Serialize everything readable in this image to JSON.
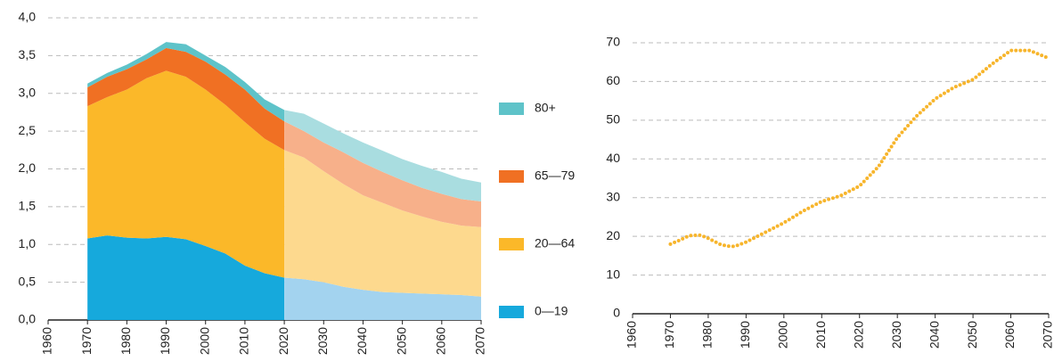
{
  "chart_data": [
    {
      "type": "stacked_area",
      "x": [
        1970,
        1975,
        1980,
        1985,
        1990,
        1995,
        2000,
        2005,
        2010,
        2015,
        2020,
        2025,
        2030,
        2035,
        2040,
        2045,
        2050,
        2055,
        2060,
        2065,
        2070
      ],
      "projection_from": 2020,
      "series": [
        {
          "name": "0—19",
          "color": "#16a9dc",
          "projection_color": "#a3d3ef",
          "values": [
            1.08,
            1.12,
            1.09,
            1.08,
            1.1,
            1.07,
            0.98,
            0.88,
            0.72,
            0.62,
            0.56,
            0.54,
            0.5,
            0.44,
            0.4,
            0.37,
            0.36,
            0.35,
            0.34,
            0.33,
            0.31
          ]
        },
        {
          "name": "20—64",
          "color": "#fbb829",
          "projection_color": "#fdd98e",
          "values": [
            1.75,
            1.83,
            1.96,
            2.12,
            2.2,
            2.15,
            2.07,
            1.97,
            1.9,
            1.78,
            1.69,
            1.61,
            1.47,
            1.36,
            1.25,
            1.18,
            1.09,
            1.02,
            0.96,
            0.92,
            0.92
          ]
        },
        {
          "name": "65—79",
          "color": "#f07023",
          "projection_color": "#f7b08a",
          "values": [
            0.25,
            0.27,
            0.27,
            0.25,
            0.3,
            0.33,
            0.37,
            0.4,
            0.43,
            0.4,
            0.38,
            0.35,
            0.38,
            0.42,
            0.43,
            0.41,
            0.4,
            0.38,
            0.37,
            0.35,
            0.34
          ]
        },
        {
          "name": "80+",
          "color": "#5ec3c9",
          "projection_color": "#a9dde0",
          "values": [
            0.05,
            0.05,
            0.06,
            0.07,
            0.08,
            0.1,
            0.08,
            0.1,
            0.1,
            0.12,
            0.15,
            0.23,
            0.25,
            0.25,
            0.27,
            0.28,
            0.28,
            0.29,
            0.29,
            0.27,
            0.25
          ]
        }
      ],
      "xlim": [
        1960,
        2070
      ],
      "xticks": [
        1960,
        1970,
        1980,
        1990,
        2000,
        2010,
        2020,
        2030,
        2040,
        2050,
        2060,
        2070
      ],
      "ylim": [
        0,
        4
      ],
      "yticks": [
        {
          "value": 0,
          "label": "0,0"
        },
        {
          "value": 0.5,
          "label": "0,5"
        },
        {
          "value": 1,
          "label": "1,0"
        },
        {
          "value": 1.5,
          "label": "1,5"
        },
        {
          "value": 2,
          "label": "2,0"
        },
        {
          "value": 2.5,
          "label": "2,5"
        },
        {
          "value": 3,
          "label": "3,0"
        },
        {
          "value": 3.5,
          "label": "3,5"
        },
        {
          "value": 4,
          "label": "4,0"
        }
      ],
      "grid": true,
      "legend": "right"
    },
    {
      "type": "line",
      "x": [
        1970,
        1972,
        1975,
        1978,
        1980,
        1983,
        1985,
        1987,
        1990,
        1995,
        2000,
        2005,
        2010,
        2015,
        2020,
        2025,
        2030,
        2035,
        2040,
        2045,
        2050,
        2055,
        2060,
        2065,
        2070
      ],
      "values": [
        18,
        18.8,
        20.2,
        20.3,
        19.5,
        18,
        17.5,
        17.4,
        18.5,
        21,
        23.5,
        26.5,
        29,
        30.5,
        33,
        38,
        45.5,
        51,
        55.5,
        58.5,
        60.5,
        64.5,
        68,
        68,
        66
      ],
      "color": "#f7b52c",
      "style": "dotted",
      "xlim": [
        1960,
        2070
      ],
      "xticks": [
        1960,
        1970,
        1980,
        1990,
        2000,
        2010,
        2020,
        2030,
        2040,
        2050,
        2060,
        2070
      ],
      "ylim": [
        0,
        70
      ],
      "yticks": [
        0,
        10,
        20,
        30,
        40,
        50,
        60,
        70
      ],
      "grid": true
    }
  ]
}
